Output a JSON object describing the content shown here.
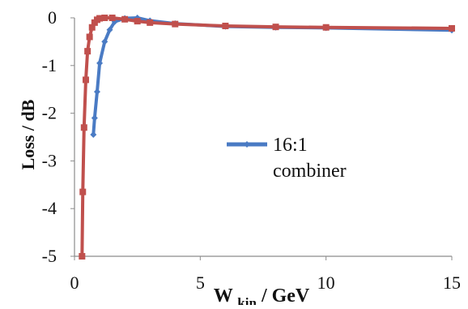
{
  "chart_data": {
    "type": "line",
    "xlabel": {
      "main": "W",
      "sub": "kin",
      "suffix": " / GeV"
    },
    "ylabel": "Loss / dB",
    "xlim": [
      0,
      15
    ],
    "ylim": [
      -5,
      0
    ],
    "xticks": [
      0,
      5,
      10,
      15
    ],
    "yticks": [
      0,
      -1,
      -2,
      -3,
      -4,
      -5
    ],
    "grid": false,
    "legend": {
      "placement": "center-right",
      "text": "16:1",
      "text2": "combiner"
    },
    "series": [
      {
        "name": "16:1 combiner",
        "color": "#4a7bc4",
        "marker": "diamond",
        "x": [
          0.75,
          0.8,
          0.9,
          1.0,
          1.2,
          1.4,
          1.6,
          2.0,
          2.5,
          3.0,
          4.0,
          6.0,
          8.0,
          10.0,
          15.0
        ],
        "y": [
          -2.45,
          -2.1,
          -1.55,
          -0.95,
          -0.5,
          -0.25,
          -0.08,
          -0.01,
          0.0,
          -0.06,
          -0.12,
          -0.18,
          -0.2,
          -0.21,
          -0.26
        ]
      },
      {
        "name": "",
        "color": "#c0504d",
        "marker": "square",
        "x": [
          0.3,
          0.33,
          0.38,
          0.45,
          0.52,
          0.6,
          0.7,
          0.8,
          0.9,
          1.0,
          1.2,
          1.5,
          2.0,
          2.5,
          3.0,
          4.0,
          6.0,
          8.0,
          10.0,
          15.0
        ],
        "y": [
          -5.0,
          -3.65,
          -2.3,
          -1.3,
          -0.7,
          -0.4,
          -0.2,
          -0.1,
          -0.04,
          -0.01,
          0.0,
          0.0,
          -0.03,
          -0.07,
          -0.1,
          -0.13,
          -0.17,
          -0.19,
          -0.2,
          -0.22
        ]
      }
    ]
  }
}
